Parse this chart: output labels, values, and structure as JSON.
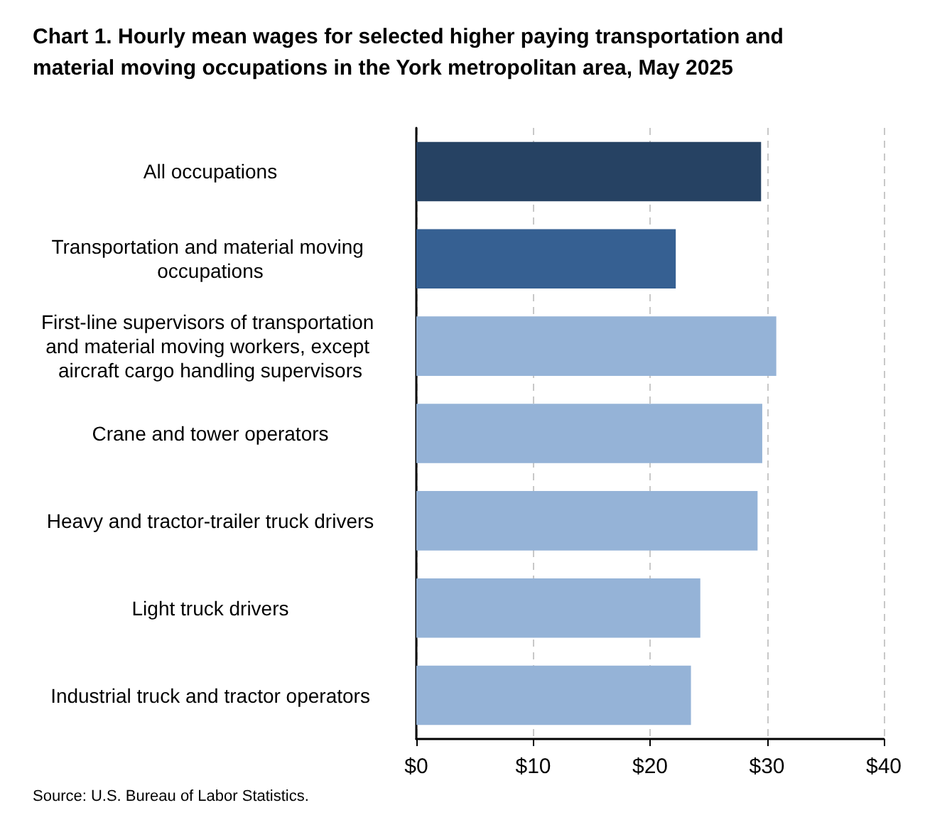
{
  "chart_data": {
    "type": "bar",
    "orientation": "horizontal",
    "title": "Chart 1. Hourly mean wages for selected higher paying transportation and material moving occupations in the York metropolitan area, May 2025",
    "categories": [
      "All occupations",
      "Transportation and material moving occupations",
      "First-line supervisors of transportation and material moving workers, except aircraft cargo handling supervisors",
      "Crane and tower operators",
      "Heavy and tractor-trailer truck drivers",
      "Light truck drivers",
      "Industrial truck and tractor operators"
    ],
    "values": [
      29.5,
      22.2,
      30.8,
      29.6,
      29.2,
      24.3,
      23.5
    ],
    "colors": [
      "#264263",
      "#366092",
      "#95b3d7",
      "#95b3d7",
      "#95b3d7",
      "#95b3d7",
      "#95b3d7"
    ],
    "xlim": [
      0,
      40
    ],
    "xticks": [
      {
        "value": 0,
        "label": "$0"
      },
      {
        "value": 10,
        "label": "$10"
      },
      {
        "value": 20,
        "label": "$20"
      },
      {
        "value": 30,
        "label": "$30"
      },
      {
        "value": 40,
        "label": "$40"
      }
    ],
    "grid": "x",
    "annotations": [
      "Source: U.S. Bureau of Labor Statistics."
    ]
  }
}
